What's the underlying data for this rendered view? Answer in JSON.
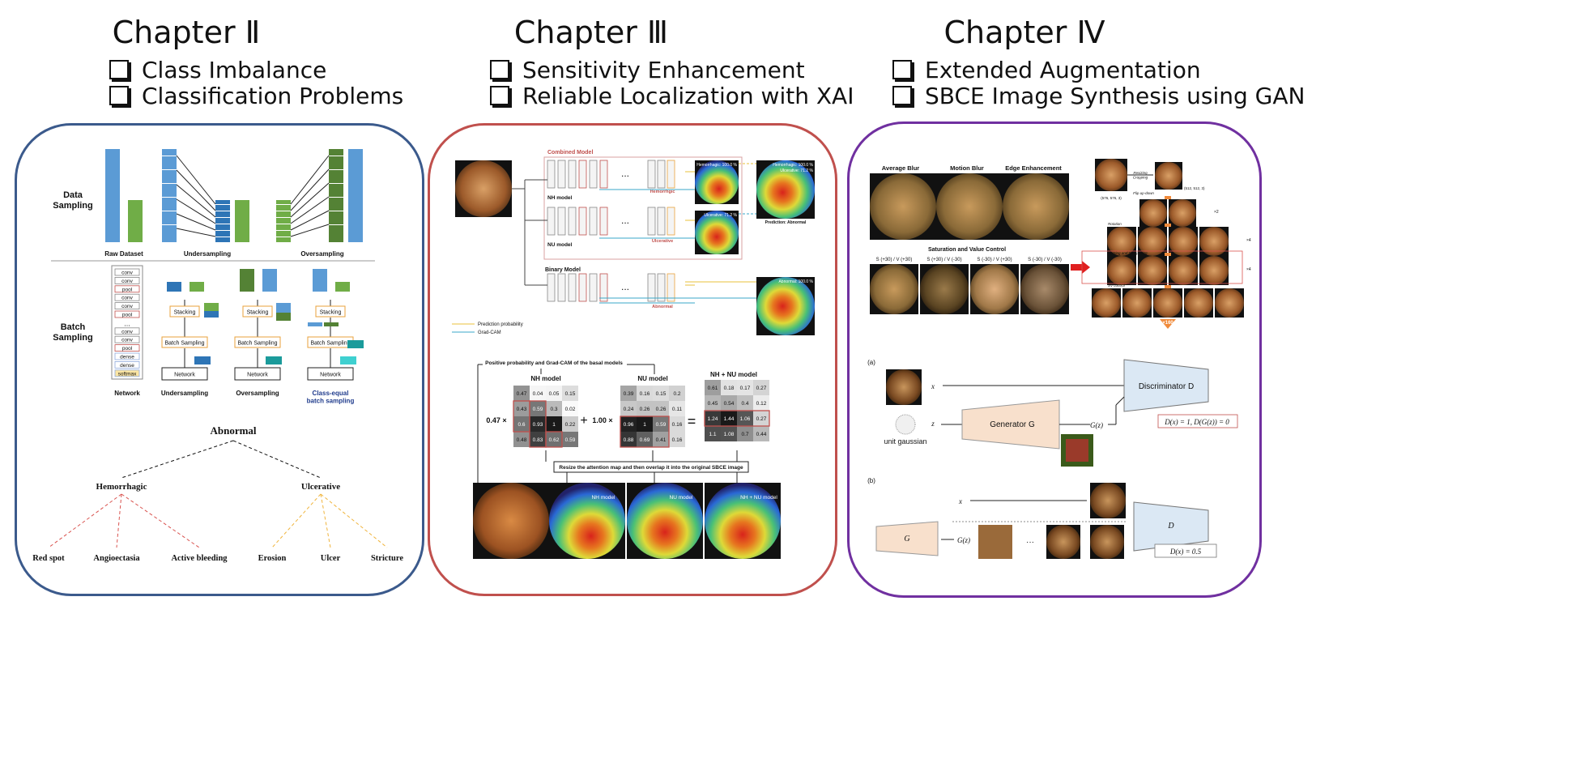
{
  "chapters": [
    {
      "title": "Chapter Ⅱ",
      "goals": [
        "Class Imbalance",
        "Classification Problems"
      ],
      "border": "#3b5a8c"
    },
    {
      "title": "Chapter Ⅲ",
      "goals": [
        "Sensitivity Enhancement",
        "Reliable Localization with XAI"
      ],
      "border": "#c0504d"
    },
    {
      "title": "Chapter Ⅳ",
      "goals": [
        "Extended Augmentation",
        "SBCE Image Synthesis using GAN"
      ],
      "border": "#7030a0"
    }
  ],
  "ch2": {
    "data_sampling": "Data\nSampling",
    "raw_dataset": "Raw Dataset",
    "undersampling": "Undersampling",
    "oversampling": "Oversampling",
    "batch_sampling": "Batch\nSampling",
    "network_layers": [
      "conv",
      "conv",
      "pool",
      "conv",
      "conv",
      "pool",
      "...",
      "conv",
      "conv",
      "pool",
      "dense",
      "dense",
      "softmax"
    ],
    "network": "Network",
    "stacking": "Stacking",
    "batch_sampling_box": "Batch Sampling",
    "network_box": "Network",
    "col_labels": [
      "Network",
      "Undersampling",
      "Oversampling",
      "Class-equal\nbatch sampling"
    ],
    "tree": {
      "root": "Abnormal",
      "mid": [
        "Hemorrhagic",
        "Ulcerative"
      ],
      "leaves": [
        "Red spot",
        "Angioectasia",
        "Active bleeding",
        "Erosion",
        "Ulcer",
        "Stricture"
      ]
    }
  },
  "ch3": {
    "combined_model": "Combined Model",
    "nh_model": "NH model",
    "nu_model": "NU model",
    "binary_model": "Binary Model",
    "hemorrhagic": "Hemorrhgic",
    "ulcerative": "Ulcerative",
    "abnormal": "Abnormal",
    "hem_prob": "Hemorrhagic: 100.0 %",
    "ulc_prob": "Ulcerative: 71.2 %",
    "combined_probs": [
      "Hemorrhagic: 100.0 %",
      "Ulcerative: 71.2 %"
    ],
    "prediction": "Prediction: Abnormal",
    "abnormal_prob": "Abnormal: 100.0 %",
    "legend": [
      "Prediction probability",
      "Grad-CAM"
    ],
    "positive_label": "Positive probability and Grad-CAM of the basal models",
    "nh_title": "NH model",
    "nu_title": "NU model",
    "sum_title": "NH + NU model",
    "coef1": "0.47 ×",
    "coef2": "1.00 ×",
    "plus": "+",
    "equals": "=",
    "nh_matrix": [
      [
        0.47,
        0.04,
        0.05,
        0.15
      ],
      [
        0.43,
        0.59,
        0.3,
        0.02
      ],
      [
        0.6,
        0.93,
        1.0,
        0.22
      ],
      [
        0.48,
        0.83,
        0.62,
        0.59
      ]
    ],
    "nu_matrix": [
      [
        0.39,
        0.16,
        0.15,
        0.2
      ],
      [
        0.24,
        0.26,
        0.26,
        0.11
      ],
      [
        0.96,
        1.0,
        0.59,
        0.16
      ],
      [
        0.88,
        0.69,
        0.41,
        0.16
      ]
    ],
    "sum_matrix": [
      [
        0.61,
        0.18,
        0.17,
        0.27
      ],
      [
        0.45,
        0.54,
        0.4,
        0.12
      ],
      [
        1.24,
        1.44,
        1.06,
        0.27
      ],
      [
        1.1,
        1.08,
        0.7,
        0.44
      ]
    ],
    "resize_label": "Resize the attention map and then overlap it into the original SBCE image",
    "overlay_labels": [
      "NH model",
      "NU model",
      "NH + NU model"
    ]
  },
  "ch4": {
    "aug_labels": [
      "Average Blur",
      "Motion Blur",
      "Edge Enhancement"
    ],
    "sv_title": "Saturation and Value Control",
    "sv_labels": [
      "S (+30) / V (+30)",
      "S (+30) / V (-30)",
      "S (-30) / V (+30)",
      "S (-30) / V (-30)"
    ],
    "resize_labels": [
      "Resizing\nCropping",
      "(512, 512, 3)",
      "(576, 576, 3)"
    ],
    "flip_label": "Flip up-down",
    "rotation_label": "Rotation",
    "blur_label": "Blurring and Sharpening",
    "sv_control": "SV control",
    "multipliers": [
      "×2",
      "×4",
      "×4",
      "×5"
    ],
    "total": "×160",
    "a_label": "(a)",
    "b_label": "(b)",
    "x": "x",
    "z": "z",
    "gz": "G(z)",
    "unit_gaussian": "unit gaussian",
    "generator": "Generator G",
    "discriminator": "Discriminator D",
    "eq_a": "D(x) = 1, D(G(z)) = 0",
    "G": "G",
    "D": "D",
    "dots": "···",
    "eq_b": "D(x) = 0.5"
  }
}
